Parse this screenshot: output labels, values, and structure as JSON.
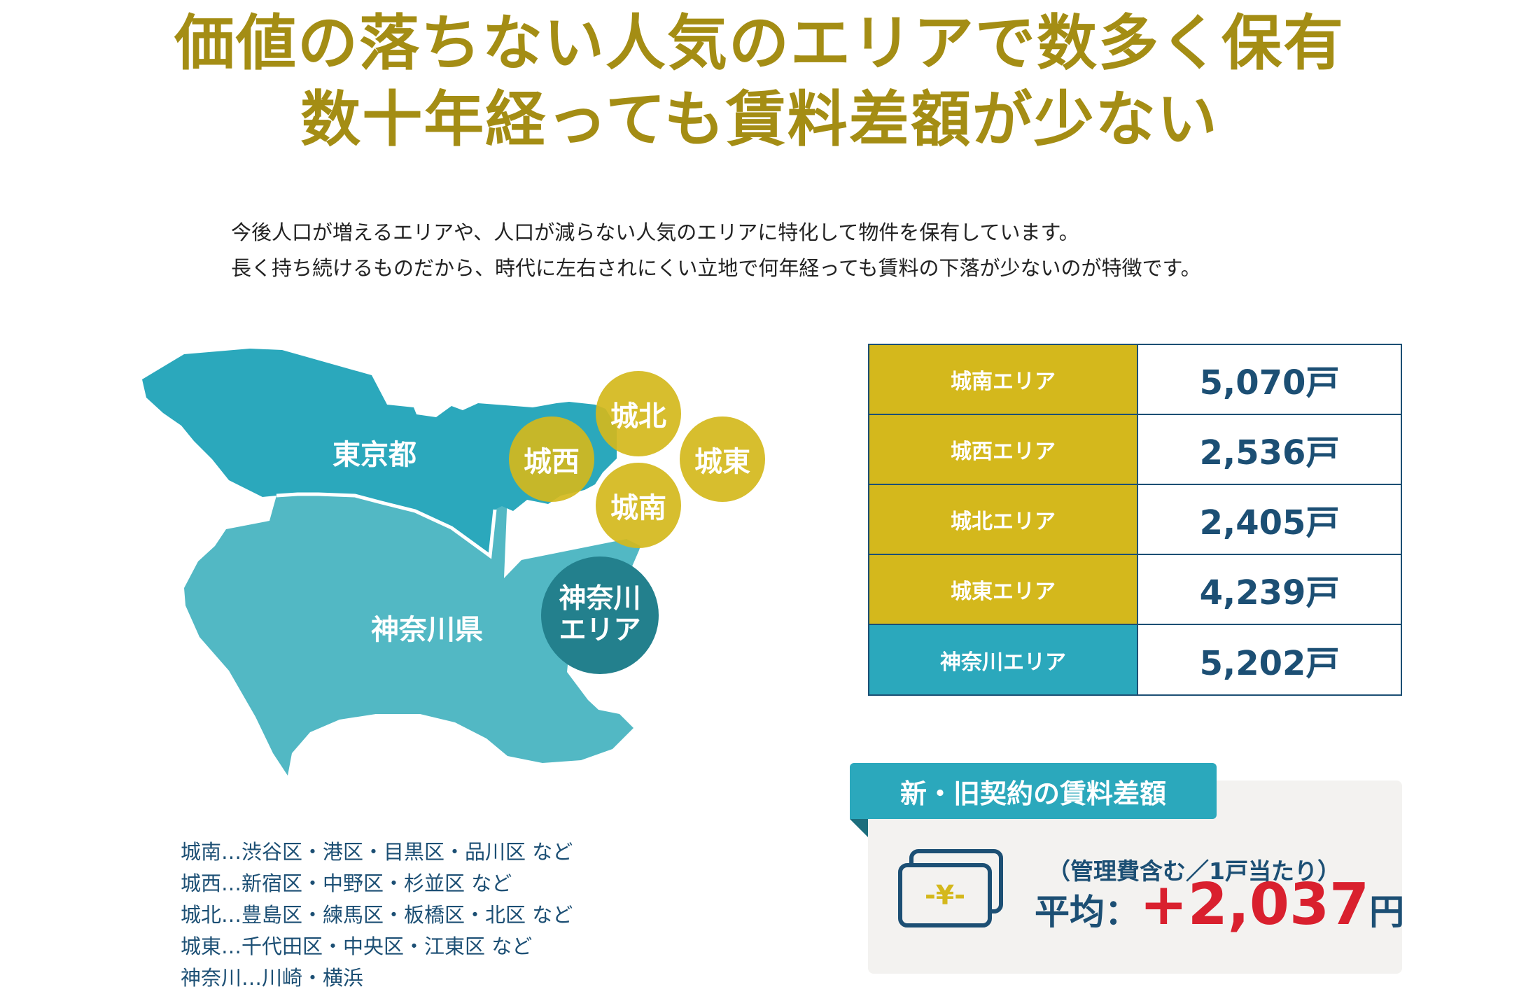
{
  "headline": {
    "line1": "価値の落ちない人気のエリアで数多く保有",
    "line2": "数十年経っても賃料差額が少ない"
  },
  "lead": {
    "line1": "今後人口が増えるエリアや、人口が減らない人気のエリアに特化して物件を保有しています。",
    "line2": "長く持ち続けるものだから、時代に左右されにくい立地で何年経っても賃料の下落が少ないのが特徴です。"
  },
  "map": {
    "tokyo_label": "東京都",
    "kanagawa_label": "神奈川県",
    "circles": {
      "johoku": "城北",
      "josai": "城西",
      "joto": "城東",
      "jonan": "城南",
      "kanagawa_line1": "神奈川",
      "kanagawa_line2": "エリア"
    },
    "colors": {
      "tokyo": "#2ba8bc",
      "kanagawa": "#52b8c4",
      "gold": "#d4b81c",
      "kanagawa_circle": "#23808d"
    }
  },
  "districts": [
    "城南…渋谷区・港区・目黒区・品川区 など",
    "城西…新宿区・中野区・杉並区 など",
    "城北…豊島区・練馬区・板橋区・北区 など",
    "城東…千代田区・中央区・江東区 など",
    "神奈川…川崎・横浜"
  ],
  "units_table": {
    "rows": [
      {
        "area": "城南エリア",
        "units": "5,070戸",
        "color": "#d4b81c"
      },
      {
        "area": "城西エリア",
        "units": "2,536戸",
        "color": "#d4b81c"
      },
      {
        "area": "城北エリア",
        "units": "2,405戸",
        "color": "#d4b81c"
      },
      {
        "area": "城東エリア",
        "units": "4,239戸",
        "color": "#d4b81c"
      },
      {
        "area": "神奈川エリア",
        "units": "5,202戸",
        "color": "#2ba8bc"
      }
    ]
  },
  "rent_diff": {
    "tab": "新・旧契約の賃料差額",
    "note": "（管理費含む／1戸当たり）",
    "avg_label": "平均：",
    "avg_value": "+2,037",
    "unit": "円",
    "icon": "yen-bill-icon",
    "icon_symbol": "-¥-"
  }
}
